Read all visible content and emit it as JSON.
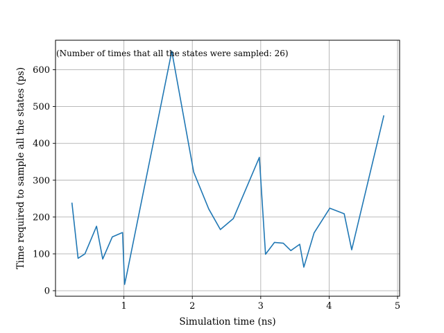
{
  "chart_data": {
    "type": "line",
    "title": "",
    "xlabel": "Simulation time (ns)",
    "ylabel": "Time required to sample all the states (ps)",
    "annotation": "(Number of times that all the states were sampled: 26)",
    "xlim": [
      0.0,
      5.03
    ],
    "ylim": [
      -15,
      680
    ],
    "xticks": [
      1,
      2,
      3,
      4,
      5
    ],
    "yticks": [
      0,
      100,
      200,
      300,
      400,
      500,
      600
    ],
    "grid": true,
    "line_color": "#1f77b4",
    "series": [
      {
        "x": [
          0.24,
          0.33,
          0.43,
          0.6,
          0.69,
          0.83,
          0.98,
          1.01,
          1.05,
          1.7,
          2.02,
          2.24,
          2.41,
          2.6,
          2.98,
          3.07,
          3.2,
          3.33,
          3.44,
          3.57,
          3.63,
          3.78,
          4.01,
          4.22,
          4.33,
          4.8
        ],
        "y": [
          239,
          88,
          100,
          175,
          86,
          146,
          158,
          17,
          52,
          650,
          322,
          222,
          166,
          196,
          362,
          99,
          131,
          129,
          109,
          126,
          64,
          157,
          224,
          209,
          111,
          476
        ]
      }
    ]
  }
}
